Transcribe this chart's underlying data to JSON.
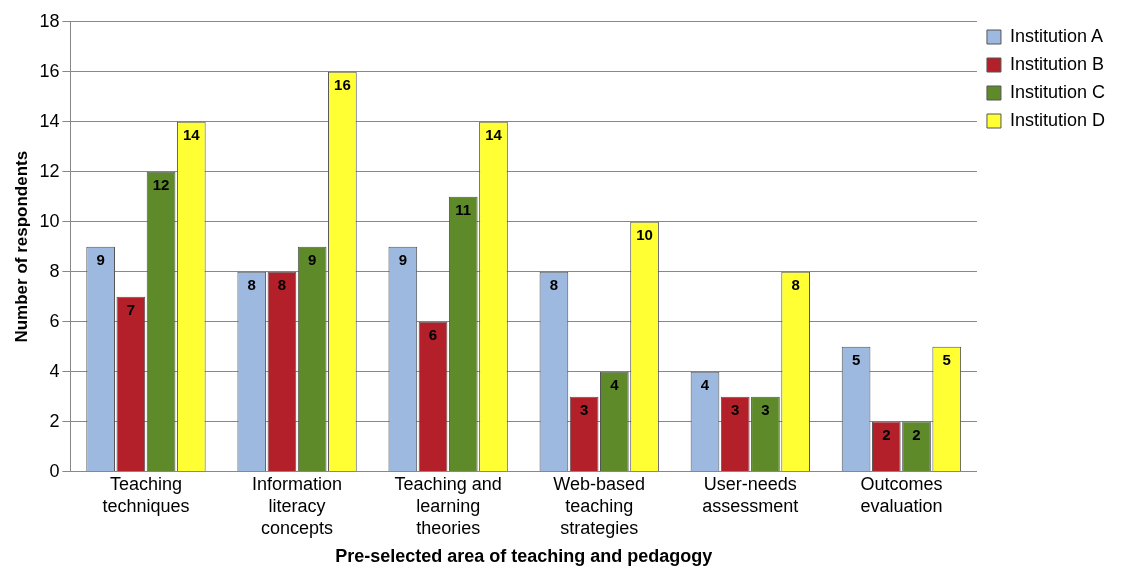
{
  "chart_data": {
    "type": "bar",
    "xlabel": "Pre-selected area of teaching and pedagogy",
    "ylabel": "Number of respondents",
    "categories": [
      "Teaching techniques",
      "Information literacy concepts",
      "Teaching and learning theories",
      "Web-based teaching strategies",
      "User-needs assessment",
      "Outcomes evaluation"
    ],
    "series": [
      {
        "name": "Institution A",
        "color": "#9db9e0",
        "values": [
          9,
          8,
          9,
          8,
          4,
          5
        ]
      },
      {
        "name": "Institution B",
        "color": "#b3202a",
        "values": [
          7,
          8,
          6,
          3,
          3,
          2
        ]
      },
      {
        "name": "Institution C",
        "color": "#5e8a2a",
        "values": [
          12,
          9,
          11,
          4,
          3,
          2
        ]
      },
      {
        "name": "Institution D",
        "color": "#ffff33",
        "values": [
          14,
          16,
          14,
          10,
          8,
          5
        ]
      }
    ],
    "ylim": [
      0,
      18
    ],
    "yticks": [
      0,
      2,
      4,
      6,
      8,
      10,
      12,
      14,
      16,
      18
    ],
    "grid": "y",
    "legend": "top right",
    "data_labels": true
  }
}
